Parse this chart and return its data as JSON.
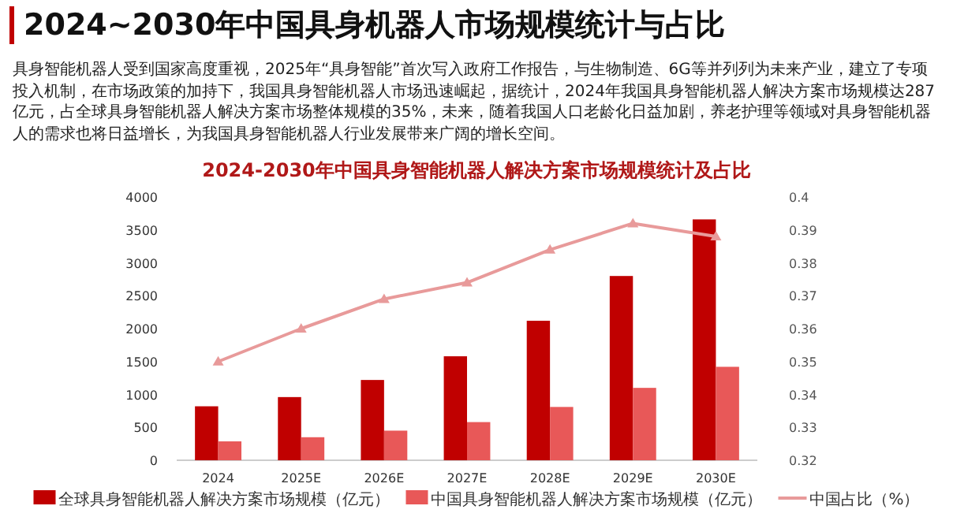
{
  "chart_data": {
    "type": "bar",
    "title": "2024~2030年中国具身机器人市场规模统计与占比",
    "subtitle": "2024-2030年中国具身智能机器人解决方案市场规模统计及占比",
    "annotations": [
      "具身智能机器人受到国家高度重视，2025年“具身智能”首次写入政府工作报告，与生物制造、6G等并列列为未来产业，建立了专项投入机制，在市场政策的加持下，我国具身智能机器人市场迅速崛起，据统计，2024年我国具身智能机器人解决方案市场规模达287亿元，占全球具身智能机器人解决方案市场整体规模的35%，未来，随着我国人口老龄化日益加剧，养老护理等领域对具身智能机器人的需求也将日益增长，为我国具身智能机器人行业发展带来广阔的增长空间。"
    ],
    "categories": [
      "2024",
      "2025E",
      "2026E",
      "2027E",
      "2028E",
      "2029E",
      "2030E"
    ],
    "series": [
      {
        "name": "全球具身智能机器人解决方案市场规模（亿元）",
        "color": "#c00000",
        "values": [
          820,
          960,
          1220,
          1580,
          2120,
          2800,
          3660
        ]
      },
      {
        "name": "中国具身智能机器人解决方案市场规模（亿元）",
        "color": "#e85858",
        "values": [
          287,
          350,
          450,
          580,
          810,
          1100,
          1420
        ]
      },
      {
        "name": "中国占比（%）",
        "color": "#e89a9a",
        "type": "line",
        "axis": "y2",
        "values": [
          0.35,
          0.36,
          0.369,
          0.374,
          0.384,
          0.392,
          0.388
        ]
      }
    ],
    "ylim": [
      0,
      4000
    ],
    "yticks": [
      0,
      500,
      1000,
      1500,
      2000,
      2500,
      3000,
      3500,
      4000
    ],
    "y2lim": [
      0.32,
      0.4
    ],
    "y2ticks": [
      0.32,
      0.33,
      0.34,
      0.35,
      0.36,
      0.37,
      0.38,
      0.39,
      0.4
    ],
    "grid": false,
    "legend": "bottom",
    "marker": "triangle"
  }
}
